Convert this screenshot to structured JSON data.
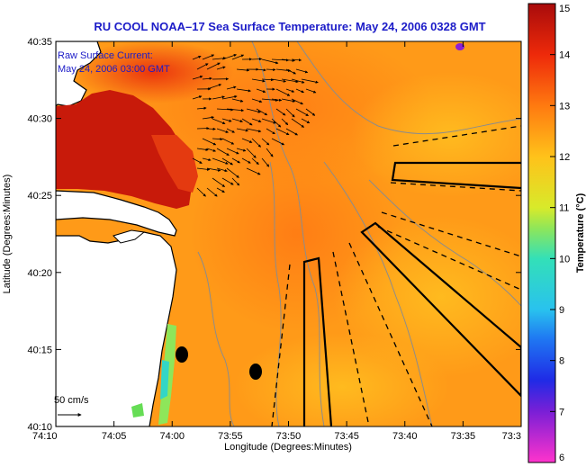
{
  "title": "RU COOL  NOAA–17  Sea Surface Temperature:  May 24, 2006 0328 GMT",
  "overlay_label_1": "Raw Surface Current:",
  "overlay_label_2": "May 24, 2006 03:00 GMT",
  "scale_label": "50 cm/s",
  "xlabel": "Longitude (Degrees:Minutes)",
  "ylabel": "Latitude (Degrees:Minutes)",
  "x_ticks": [
    "74:10",
    "74:05",
    "74:00",
    "73:55",
    "73:50",
    "73:45",
    "73:40",
    "73:35",
    "73:3"
  ],
  "y_ticks": [
    "40:35",
    "40:30",
    "40:25",
    "40:20",
    "40:15",
    "40:10"
  ],
  "colorbar": {
    "label": "Temperature (°C)",
    "ticks": [
      "15",
      "14",
      "13",
      "12",
      "11",
      "10",
      "9",
      "8",
      "7",
      "6"
    ],
    "min": 6,
    "max": 15,
    "colors": {
      "6": "#ff33cc",
      "7": "#7a1fd6",
      "7.6": "#1f2be6",
      "8.4": "#1f78f2",
      "9": "#29c2ee",
      "10": "#33e0b8",
      "10.6": "#8ee65a",
      "11": "#d8ea2a",
      "12": "#ffc21a",
      "13": "#ff7a10",
      "14": "#ee2a0a",
      "15": "#a80b0b"
    }
  },
  "colors": {
    "title": "#1c1cc8",
    "land": "#ffffff",
    "contour": "#8c8c8c",
    "coast": "#000000"
  }
}
